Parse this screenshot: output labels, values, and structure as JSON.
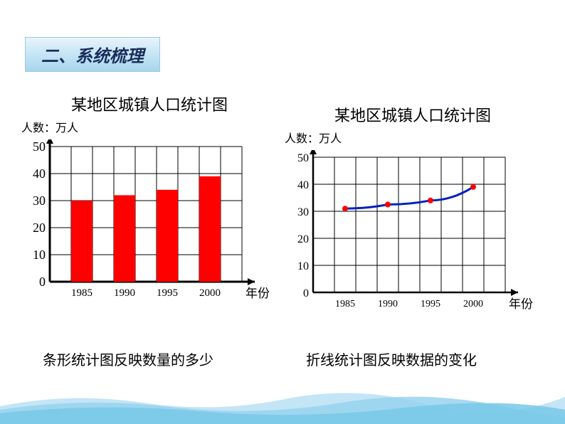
{
  "section_header": "二、系统梳理",
  "left_chart": {
    "type": "bar",
    "title": "某地区城镇人口统计图",
    "y_axis_label": "人数：万人",
    "x_axis_label": "年份",
    "categories": [
      "1985",
      "1990",
      "1995",
      "2000"
    ],
    "values": [
      30,
      32,
      34,
      39
    ],
    "bar_color": "#ff0000",
    "ylim": [
      0,
      50
    ],
    "ytick_step": 10,
    "yticks": [
      "0",
      "10",
      "20",
      "30",
      "40",
      "50"
    ],
    "grid_color": "#000000",
    "background_color": "#ffffff",
    "axis_color": "#000000",
    "axis_width": 3,
    "bar_width_ratio": 0.6,
    "title_fontsize": 22,
    "label_fontsize": 16,
    "tick_fontsize": 18,
    "grid_cols": 9,
    "grid_rows": 5,
    "caption": "条形统计图反映数量的多少"
  },
  "right_chart": {
    "type": "line",
    "title": "某地区城镇人口统计图",
    "y_axis_label": "人数：万人",
    "x_axis_label": "年份",
    "categories": [
      "1985",
      "1990",
      "1995",
      "2000"
    ],
    "values": [
      31,
      32.5,
      34,
      39
    ],
    "line_color": "#0020c0",
    "marker_color": "#ff0000",
    "marker_size": 4,
    "line_width": 3,
    "ylim": [
      0,
      50
    ],
    "ytick_step": 10,
    "yticks": [
      "0",
      "10",
      "20",
      "30",
      "40",
      "50"
    ],
    "grid_color": "#000000",
    "background_color": "#ffffff",
    "axis_color": "#000000",
    "axis_width": 2.5,
    "title_fontsize": 22,
    "label_fontsize": 16,
    "tick_fontsize": 16,
    "grid_cols": 9,
    "grid_rows": 5,
    "caption": "折线统计图反映数据的变化"
  },
  "footer": {
    "wave_colors": [
      "#b8e0f5",
      "#98d4ee",
      "#78c8e8",
      "#a8dcf0"
    ]
  }
}
